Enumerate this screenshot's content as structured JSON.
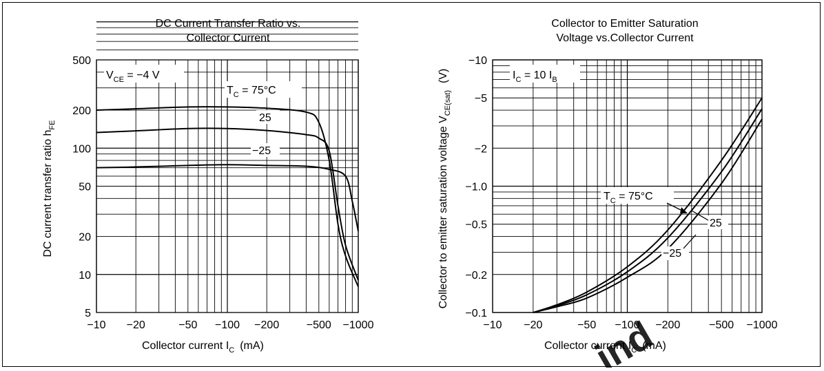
{
  "charts": [
    {
      "title_line1": "DC Current Transfer Ratio vs.",
      "title_line2": "Collector Current",
      "xlabel": "Collector current  I",
      "xlabel_sub": "C",
      "xlabel_unit": "(mA)",
      "ylabel": "DC current transfer ratio  h",
      "ylabel_sub": "FE",
      "xticks": [
        "−10",
        "−20",
        "−50",
        "−100",
        "−200",
        "−500",
        "−1000"
      ],
      "yticks": [
        "5",
        "10",
        "20",
        "50",
        "100",
        "200",
        "500"
      ],
      "condition_main": "V",
      "condition_sub": "CE",
      "condition_rest": " = −4 V",
      "legend_prefix": "T",
      "legend_sub": "C",
      "legend_main": " = 75°C",
      "label_25": "25",
      "label_m25": "−25"
    },
    {
      "title_line1": "Collector to Emitter Saturation",
      "title_line2": "Voltage vs.Collector Current",
      "xlabel": "Collector current  I",
      "xlabel_sub": "C",
      "xlabel_unit": "(mA)",
      "ylabel": "Collector to emitter saturation voltage  V",
      "ylabel_sub": "CE(sat)",
      "ylabel_unit": "(V)",
      "xticks": [
        "−10",
        "−20",
        "−50",
        "−100",
        "−200",
        "−500",
        "−1000"
      ],
      "yticks": [
        "−0.1",
        "−0.2",
        "−0.5",
        "−1.0",
        "−2",
        "−5",
        "−10"
      ],
      "condition_main": "I",
      "condition_sub": "C",
      "condition_rest": " = 10 I",
      "condition_sub2": "B",
      "legend_prefix": "T",
      "legend_sub": "C",
      "legend_main": " = 75°C",
      "label_25": "25",
      "label_m25": "−25"
    }
  ],
  "watermark": "ind",
  "chart_data": [
    {
      "type": "line",
      "title": "DC Current Transfer Ratio vs. Collector Current",
      "xlabel": "Collector current IC (mA)",
      "ylabel": "DC current transfer ratio hFE",
      "xscale": "log",
      "yscale": "log",
      "xlim": [
        -10,
        -1000
      ],
      "ylim": [
        5,
        500
      ],
      "grid": true,
      "series": [
        {
          "name": "TC = 75°C",
          "x": [
            -10,
            -20,
            -50,
            -100,
            -200,
            -400,
            -500,
            -600,
            -700,
            -800,
            -1000
          ],
          "y": [
            200,
            205,
            212,
            212,
            207,
            193,
            160,
            80,
            25,
            14,
            8
          ]
        },
        {
          "name": "25",
          "x": [
            -10,
            -20,
            -50,
            -100,
            -200,
            -400,
            -500,
            -600,
            -700,
            -800,
            -1000
          ],
          "y": [
            133,
            137,
            143,
            143,
            138,
            128,
            120,
            95,
            35,
            17,
            9
          ]
        },
        {
          "name": "−25",
          "x": [
            -10,
            -20,
            -50,
            -100,
            -200,
            -400,
            -600,
            -800,
            -900,
            -1000
          ],
          "y": [
            70,
            71,
            73,
            74,
            73,
            72,
            68,
            60,
            38,
            22
          ]
        }
      ]
    },
    {
      "type": "line",
      "title": "Collector to Emitter Saturation Voltage vs.Collector Current",
      "xlabel": "Collector current IC (mA)",
      "ylabel": "Collector to emitter saturation voltage VCE(sat) (V)",
      "xscale": "log",
      "yscale": "log",
      "xlim": [
        -10,
        -1000
      ],
      "ylim": [
        -0.1,
        -10
      ],
      "grid": true,
      "series": [
        {
          "name": "TC = 75°C",
          "x": [
            -20,
            -30,
            -50,
            -100,
            -200,
            -500,
            -1000
          ],
          "y": [
            -0.1,
            -0.115,
            -0.145,
            -0.23,
            -0.45,
            -1.6,
            -5.0
          ]
        },
        {
          "name": "25",
          "x": [
            -20,
            -30,
            -50,
            -100,
            -200,
            -500,
            -1000
          ],
          "y": [
            -0.1,
            -0.113,
            -0.138,
            -0.21,
            -0.39,
            -1.3,
            -4.1
          ]
        },
        {
          "name": "−25",
          "x": [
            -20,
            -30,
            -50,
            -100,
            -200,
            -500,
            -1000
          ],
          "y": [
            -0.1,
            -0.111,
            -0.13,
            -0.19,
            -0.32,
            -1.05,
            -3.4
          ]
        }
      ]
    }
  ]
}
